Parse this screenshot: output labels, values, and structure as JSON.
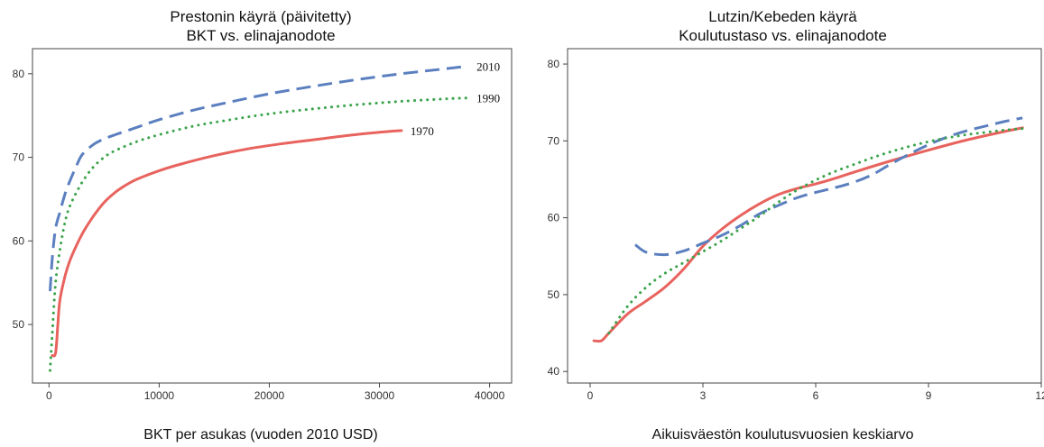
{
  "chart_data": [
    {
      "type": "line",
      "title": "Prestonin käyrä (päivitetty)",
      "subtitle": "BKT vs. elinajanodote",
      "xlabel": "BKT per asukas (vuoden 2010 USD)",
      "ylabel": "",
      "xlim": [
        -1500,
        42000
      ],
      "ylim": [
        43,
        83
      ],
      "xticks": [
        0,
        10000,
        20000,
        30000,
        40000
      ],
      "yticks": [
        50,
        60,
        70,
        80
      ],
      "xtick_labels": [
        "0",
        "10000",
        "20000",
        "30000",
        "40000"
      ],
      "ytick_labels": [
        "50",
        "60",
        "70",
        "80"
      ],
      "grid": false,
      "series": [
        {
          "name": "2010",
          "color": "#5b7fbf",
          "style": "dashed",
          "x": [
            100,
            300,
            600,
            1000,
            1500,
            2000,
            2500,
            3000,
            4000,
            5000,
            6000,
            8000,
            10000,
            13000,
            16000,
            20000,
            24000,
            28000,
            32000,
            36000,
            38000
          ],
          "y": [
            54,
            58,
            61.5,
            63.5,
            65.8,
            67.5,
            69,
            70.3,
            71.5,
            72.2,
            72.7,
            73.6,
            74.5,
            75.6,
            76.5,
            77.6,
            78.5,
            79.3,
            80,
            80.6,
            80.9
          ]
        },
        {
          "name": "1990",
          "color": "#3aa34a",
          "style": "dotted",
          "x": [
            100,
            300,
            600,
            1000,
            1500,
            2000,
            3000,
            4000,
            5000,
            6000,
            8000,
            10000,
            13000,
            16000,
            20000,
            24000,
            28000,
            32000,
            36000,
            38000
          ],
          "y": [
            44.5,
            49,
            55,
            59,
            62.5,
            64.5,
            67,
            68.8,
            70,
            70.8,
            71.9,
            72.7,
            73.7,
            74.4,
            75.2,
            75.8,
            76.3,
            76.7,
            77,
            77.1
          ]
        },
        {
          "name": "1970",
          "color": "#e8635e",
          "style": "solid",
          "x": [
            300,
            600,
            800,
            1000,
            1500,
            2000,
            3000,
            4000,
            5000,
            6000,
            7000,
            8000,
            10000,
            12000,
            15000,
            18000,
            21000,
            24000,
            27000,
            30000,
            32000
          ],
          "y": [
            46.3,
            46.6,
            50,
            53,
            56,
            58,
            60.8,
            62.9,
            64.6,
            65.8,
            66.7,
            67.4,
            68.4,
            69.2,
            70.2,
            71,
            71.6,
            72.1,
            72.6,
            73,
            73.2
          ]
        }
      ]
    },
    {
      "type": "line",
      "title": "Lutzin/Kebeden käyrä",
      "subtitle": "Koulutustaso vs. elinajanodote",
      "xlabel": "Aikuisväestön koulutusvuosien keskiarvo",
      "ylabel": "",
      "xlim": [
        -0.6,
        12
      ],
      "ylim": [
        38.5,
        82
      ],
      "xticks": [
        0,
        3,
        6,
        9,
        12
      ],
      "yticks": [
        40,
        50,
        60,
        70,
        80
      ],
      "xtick_labels": [
        "0",
        "3",
        "6",
        "9",
        "12"
      ],
      "ytick_labels": [
        "40",
        "50",
        "60",
        "70",
        "80"
      ],
      "grid": false,
      "series": [
        {
          "color": "#e8635e",
          "style": "solid",
          "x": [
            0.1,
            0.3,
            0.5,
            1,
            1.5,
            2,
            2.5,
            3,
            3.5,
            4,
            4.5,
            5,
            5.5,
            6,
            6.5,
            7,
            8,
            9,
            10,
            11,
            11.5
          ],
          "y": [
            44,
            44,
            45,
            47.5,
            49.2,
            51,
            53.4,
            56.3,
            58.5,
            60.3,
            61.8,
            63,
            63.8,
            64.4,
            65.1,
            65.9,
            67.4,
            68.8,
            70.1,
            71.2,
            71.7
          ]
        },
        {
          "color": "#5b7fbf",
          "style": "dashed",
          "x": [
            1.2,
            1.5,
            2,
            2.5,
            3,
            3.5,
            4,
            4.5,
            5,
            5.5,
            6,
            6.5,
            7,
            7.5,
            8,
            8.5,
            9,
            9.5,
            10,
            10.5,
            11,
            11.5
          ],
          "y": [
            56.5,
            55.5,
            55.2,
            55.7,
            56.7,
            57.7,
            59,
            60.5,
            61.6,
            62.6,
            63.3,
            63.9,
            64.6,
            65.6,
            67,
            68.3,
            69.5,
            70.5,
            71.3,
            71.9,
            72.5,
            73
          ]
        },
        {
          "color": "#3aa34a",
          "style": "dotted",
          "x": [
            0.5,
            1,
            1.5,
            2,
            2.5,
            3,
            3.5,
            4,
            4.5,
            5,
            5.5,
            6,
            6.5,
            7,
            7.5,
            8,
            8.5,
            9,
            9.5,
            10,
            10.5,
            11,
            11.5
          ],
          "y": [
            45,
            48.5,
            51,
            52.8,
            54.2,
            55.6,
            57,
            58.6,
            60.2,
            62,
            63.6,
            64.9,
            66,
            66.9,
            67.8,
            68.6,
            69.3,
            69.9,
            70.4,
            70.8,
            71.1,
            71.4,
            71.6
          ]
        }
      ]
    }
  ]
}
